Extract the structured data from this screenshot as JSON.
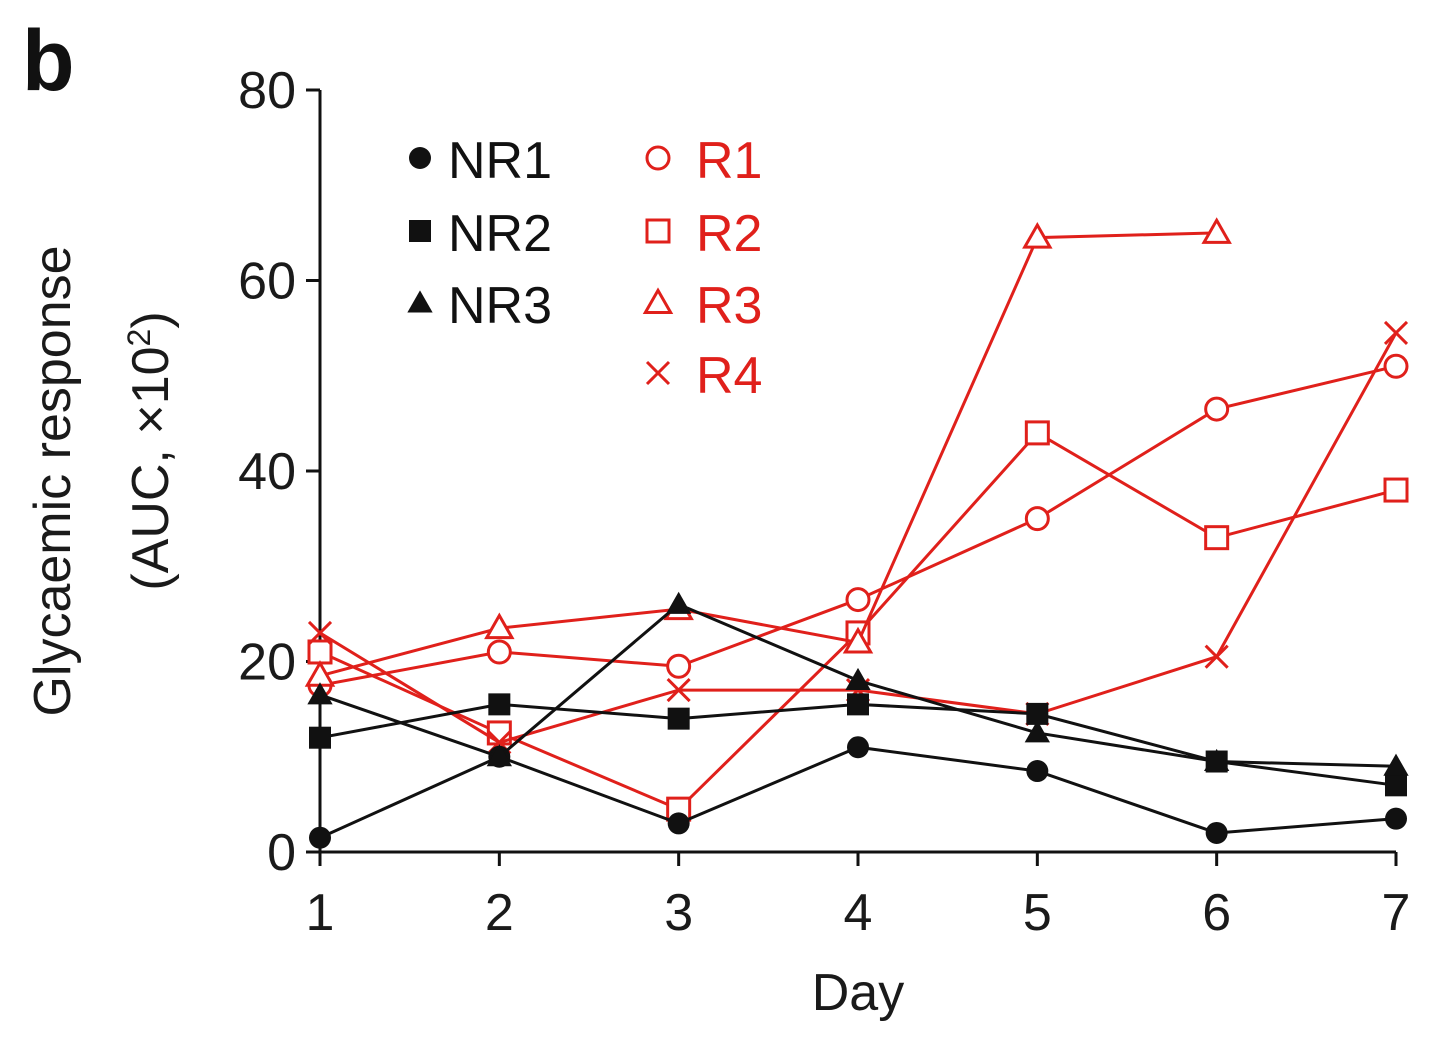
{
  "panel_label": "b",
  "chart_data": {
    "type": "line",
    "xlabel": "Day",
    "ylabel_line1": "Glycaemic response",
    "ylabel_line2": "(AUC, ×10",
    "ylabel_sup": "2",
    "ylabel_close": ")",
    "x": [
      1,
      2,
      3,
      4,
      5,
      6,
      7
    ],
    "xlim": [
      1,
      7
    ],
    "ylim": [
      0,
      80
    ],
    "yticks": [
      0,
      20,
      40,
      60,
      80
    ],
    "grid": false,
    "legend_position": "top-left",
    "colors": {
      "nonresponder": "#111111",
      "responder": "#e0201b"
    },
    "series": [
      {
        "name": "NR1",
        "marker": "filled-circle",
        "group": "nonresponder",
        "values": [
          1.5,
          10,
          3,
          11,
          8.5,
          2,
          3.5
        ]
      },
      {
        "name": "NR2",
        "marker": "filled-square",
        "group": "nonresponder",
        "values": [
          12,
          15.5,
          14,
          15.5,
          14.5,
          9.5,
          7
        ]
      },
      {
        "name": "NR3",
        "marker": "filled-triangle",
        "group": "nonresponder",
        "values": [
          16.5,
          10,
          26,
          18,
          12.5,
          9.5,
          9
        ]
      },
      {
        "name": "R1",
        "marker": "open-circle",
        "group": "responder",
        "values": [
          17.5,
          21,
          19.5,
          26.5,
          35,
          46.5,
          51
        ]
      },
      {
        "name": "R2",
        "marker": "open-square",
        "group": "responder",
        "values": [
          21,
          12.5,
          4.5,
          23,
          44,
          33,
          38
        ]
      },
      {
        "name": "R3",
        "marker": "open-triangle",
        "group": "responder",
        "values": [
          18.5,
          23.5,
          25.5,
          22,
          64.5,
          65,
          null
        ]
      },
      {
        "name": "R4",
        "marker": "cross",
        "group": "responder",
        "values": [
          23,
          11.5,
          17,
          17,
          14.5,
          20.5,
          54.5
        ]
      }
    ]
  }
}
